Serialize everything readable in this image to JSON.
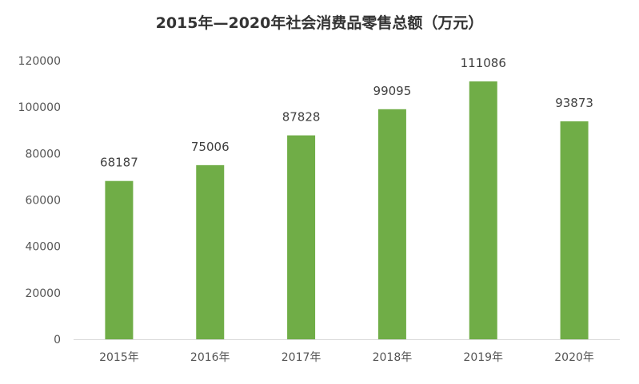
{
  "chart_data": {
    "type": "bar",
    "title": "2015年—2020年社会消费品零售总额（万元）",
    "xlabel": "",
    "ylabel": "",
    "categories": [
      "2015年",
      "2016年",
      "2017年",
      "2018年",
      "2019年",
      "2020年"
    ],
    "values": [
      68187,
      75006,
      87828,
      99095,
      111086,
      93873
    ],
    "data_labels": [
      "68187",
      "75006",
      "87828",
      "99095",
      "111086",
      "93873"
    ],
    "ylim": [
      0,
      120000
    ],
    "yticks": [
      0,
      20000,
      40000,
      60000,
      80000,
      100000,
      120000
    ],
    "ytick_labels": [
      "0",
      "20000",
      "40000",
      "60000",
      "80000",
      "100000",
      "120000"
    ],
    "grid": false,
    "legend": "none",
    "bar_color": "#70AD47"
  }
}
